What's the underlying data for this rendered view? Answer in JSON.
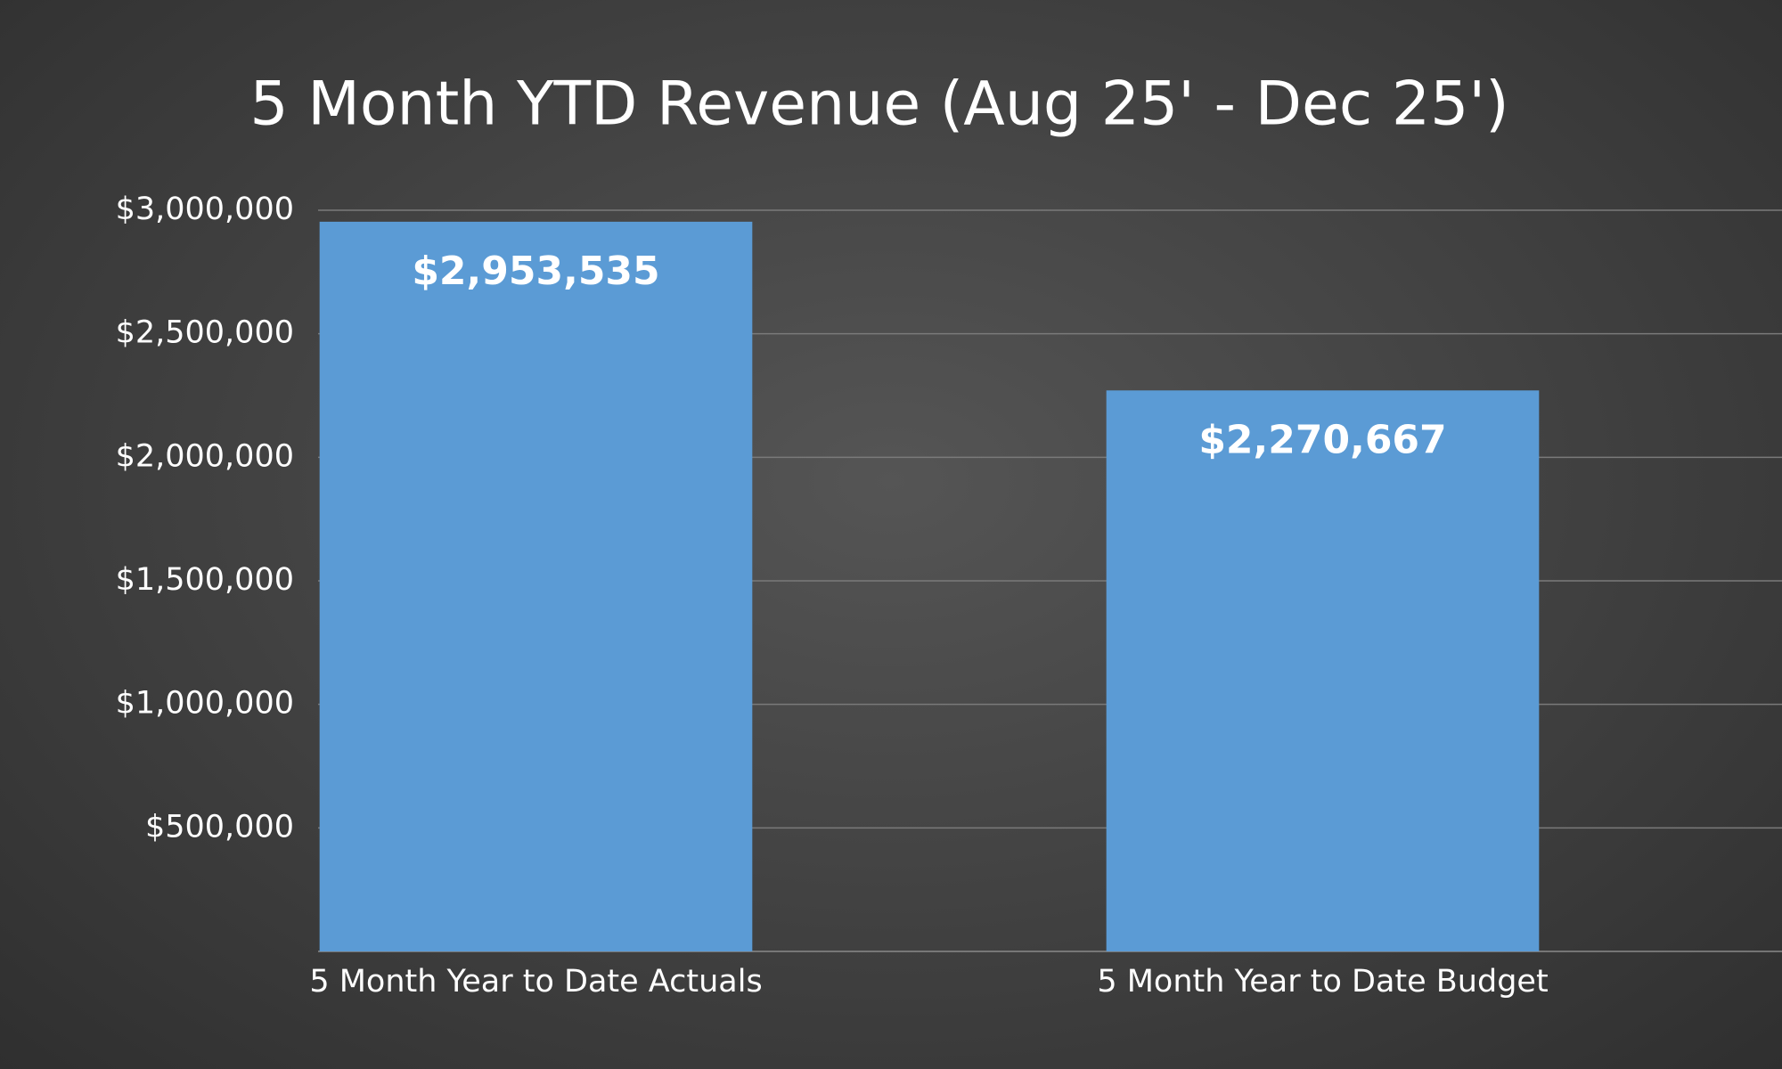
{
  "chart_data": {
    "type": "bar",
    "title": "5 Month YTD Revenue (Aug 25' - Dec 25')",
    "categories": [
      "5 Month Year to Date Actuals",
      "5 Month Year to Date Budget"
    ],
    "values": [
      2953535,
      2270667
    ],
    "value_labels": [
      "$2,953,535",
      "$2,270,667"
    ],
    "color": "#5b9bd5",
    "ylim": [
      0,
      3000000
    ],
    "yticks": [
      {
        "value": 500000,
        "label": "$500,000"
      },
      {
        "value": 1000000,
        "label": "$1,000,000"
      },
      {
        "value": 1500000,
        "label": "$1,500,000"
      },
      {
        "value": 2000000,
        "label": "$2,000,000"
      },
      {
        "value": 2500000,
        "label": "$2,500,000"
      },
      {
        "value": 3000000,
        "label": "$3,000,000"
      }
    ],
    "grid": true
  }
}
